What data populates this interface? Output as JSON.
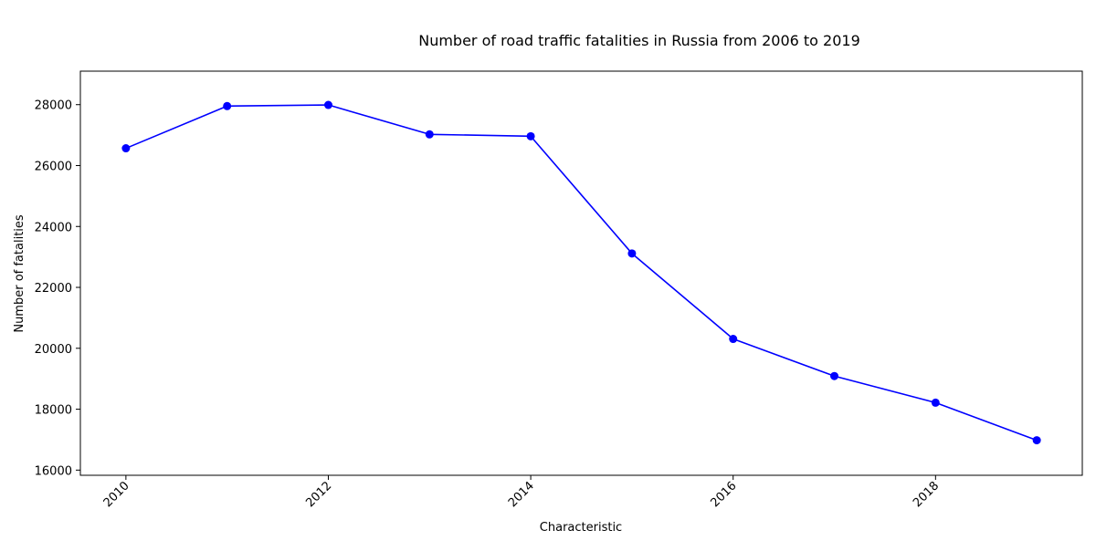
{
  "chart_data": {
    "type": "line",
    "title": "Number of road traffic fatalities in Russia from 2006 to 2019",
    "xlabel": "Characteristic",
    "ylabel": "Number of fatalities",
    "x": [
      2010,
      2011,
      2012,
      2013,
      2014,
      2015,
      2016,
      2017,
      2018,
      2019
    ],
    "series": [
      {
        "values": [
          26567,
          27953,
          27991,
          27025,
          26963,
          23114,
          20308,
          19088,
          18214,
          16981
        ],
        "color": "#0000ff",
        "marker": "circle"
      }
    ],
    "xticks": [
      2010,
      2012,
      2014,
      2016,
      2018
    ],
    "xtick_labels": [
      "2010",
      "2012",
      "2014",
      "2016",
      "2018"
    ],
    "xtick_rotation": "45-degree",
    "xlim": [
      2009.55,
      2019.45
    ],
    "yticks": [
      16000,
      18000,
      20000,
      22000,
      24000,
      26000,
      28000
    ],
    "ytick_labels": [
      "16000",
      "18000",
      "20000",
      "22000",
      "24000",
      "26000",
      "28000"
    ],
    "ylim": [
      15830,
      29100
    ],
    "grid": false,
    "legend": false
  }
}
